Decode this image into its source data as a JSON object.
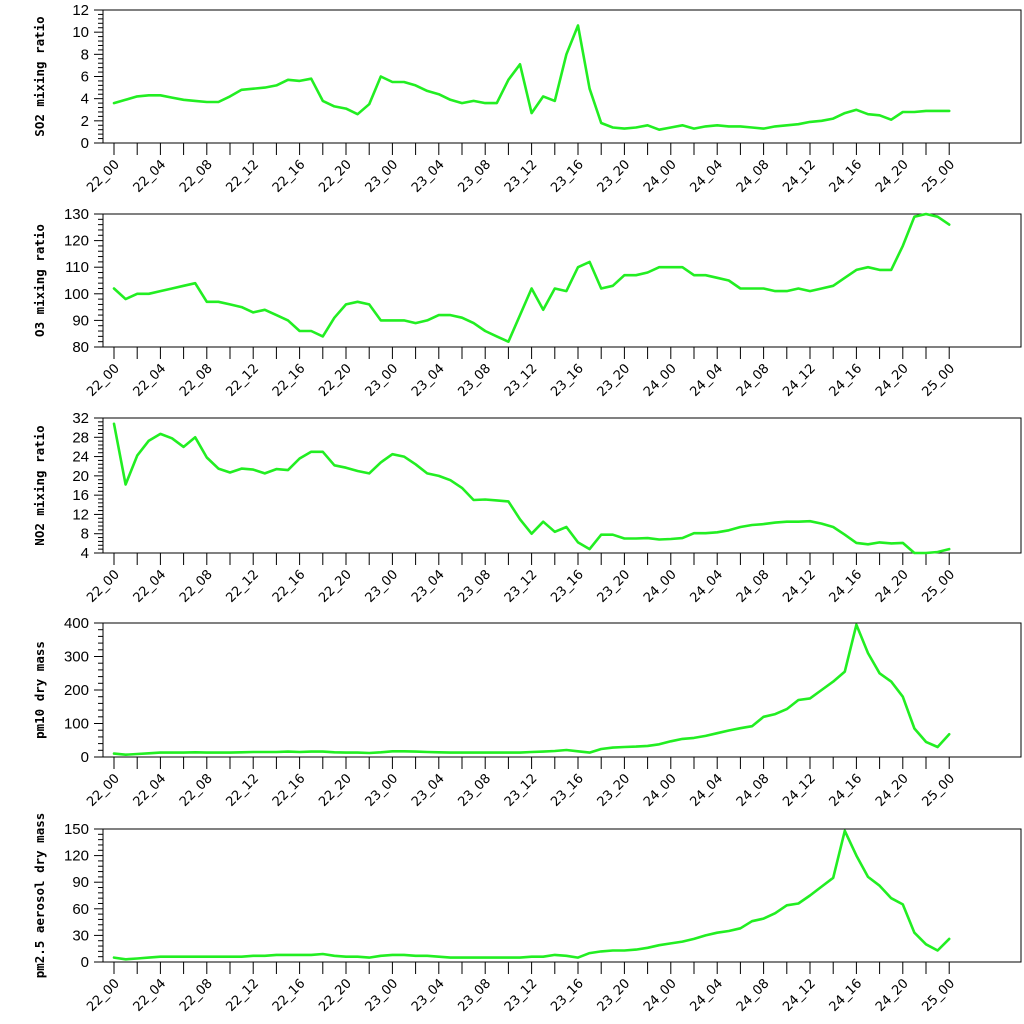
{
  "line_color": "#22ee22",
  "chart_data": [
    {
      "type": "line",
      "ylabel": "SO2 mixing ratio",
      "ylim": [
        0,
        12
      ],
      "yticks": [
        0,
        2,
        4,
        6,
        8,
        10,
        12
      ],
      "xtick_labels": [
        "22_00",
        "22_04",
        "22_08",
        "22_12",
        "22_16",
        "22_20",
        "23_00",
        "23_04",
        "23_08",
        "23_12",
        "23_16",
        "23_20",
        "24_00",
        "24_04",
        "24_08",
        "24_12",
        "24_16",
        "24_20",
        "25_00"
      ],
      "values": [
        3.6,
        3.9,
        4.2,
        4.3,
        4.3,
        4.1,
        3.9,
        3.8,
        3.7,
        3.7,
        4.2,
        4.8,
        4.9,
        5.0,
        5.2,
        5.7,
        5.6,
        5.8,
        3.8,
        3.3,
        3.1,
        2.6,
        3.5,
        6.0,
        5.5,
        5.5,
        5.2,
        4.7,
        4.4,
        3.9,
        3.6,
        3.8,
        3.6,
        3.6,
        5.7,
        7.1,
        2.7,
        4.2,
        3.8,
        8.0,
        10.6,
        4.9,
        1.8,
        1.4,
        1.3,
        1.4,
        1.6,
        1.2,
        1.4,
        1.6,
        1.3,
        1.5,
        1.6,
        1.5,
        1.5,
        1.4,
        1.3,
        1.5,
        1.6,
        1.7,
        1.9,
        2.0,
        2.2,
        2.7,
        3.0,
        2.6,
        2.5,
        2.1,
        2.8,
        2.8,
        2.9,
        2.9,
        2.9
      ]
    },
    {
      "type": "line",
      "ylabel": "O3 mixing ratio",
      "ylim": [
        80,
        130
      ],
      "yticks": [
        80,
        90,
        100,
        110,
        120,
        130
      ],
      "xtick_labels": [
        "22_00",
        "22_04",
        "22_08",
        "22_12",
        "22_16",
        "22_20",
        "23_00",
        "23_04",
        "23_08",
        "23_12",
        "23_16",
        "23_20",
        "24_00",
        "24_04",
        "24_08",
        "24_12",
        "24_16",
        "24_20",
        "25_00"
      ],
      "values": [
        102,
        98,
        100,
        100,
        101,
        102,
        103,
        104,
        97,
        97,
        96,
        95,
        93,
        94,
        92,
        90,
        86,
        86,
        84,
        91,
        96,
        97,
        96,
        90,
        90,
        90,
        89,
        90,
        92,
        92,
        91,
        89,
        86,
        84,
        82,
        92,
        102,
        94,
        102,
        101,
        110,
        112,
        102,
        103,
        107,
        107,
        108,
        110,
        110,
        110,
        107,
        107,
        106,
        105,
        102,
        102,
        102,
        101,
        101,
        102,
        101,
        102,
        103,
        106,
        109,
        110,
        109,
        109,
        118,
        129,
        130,
        129,
        126
      ]
    },
    {
      "type": "line",
      "ylabel": "NO2 mixing ratio",
      "ylim": [
        4,
        32
      ],
      "yticks": [
        4,
        8,
        12,
        16,
        20,
        24,
        28,
        32
      ],
      "xtick_labels": [
        "22_00",
        "22_04",
        "22_08",
        "22_12",
        "22_16",
        "22_20",
        "23_00",
        "23_04",
        "23_08",
        "23_12",
        "23_16",
        "23_20",
        "24_00",
        "24_04",
        "24_08",
        "24_12",
        "24_16",
        "24_20",
        "25_00"
      ],
      "values": [
        30.8,
        18.2,
        24.2,
        27.3,
        28.7,
        27.8,
        26.0,
        28.0,
        23.8,
        21.5,
        20.7,
        21.5,
        21.3,
        20.5,
        21.4,
        21.2,
        23.6,
        25.0,
        25.0,
        22.2,
        21.7,
        21.0,
        20.5,
        22.8,
        24.5,
        24.0,
        22.4,
        20.5,
        20.0,
        19.1,
        17.5,
        15.0,
        15.1,
        14.9,
        14.7,
        11.0,
        8.0,
        10.5,
        8.4,
        9.4,
        6.2,
        4.8,
        7.8,
        7.8,
        7.0,
        7.0,
        7.1,
        6.8,
        6.9,
        7.1,
        8.1,
        8.1,
        8.3,
        8.7,
        9.4,
        9.8,
        10.0,
        10.3,
        10.5,
        10.5,
        10.6,
        10.1,
        9.4,
        7.8,
        6.1,
        5.8,
        6.2,
        6.0,
        6.1,
        4.0,
        4.0,
        4.2,
        4.8
      ]
    },
    {
      "type": "line",
      "ylabel": "pm10 dry mass",
      "ylim": [
        0,
        400
      ],
      "yticks": [
        0,
        100,
        200,
        300,
        400
      ],
      "xtick_labels": [
        "22_00",
        "22_04",
        "22_08",
        "22_12",
        "22_16",
        "22_20",
        "23_00",
        "23_04",
        "23_08",
        "23_12",
        "23_16",
        "23_20",
        "24_00",
        "24_04",
        "24_08",
        "24_12",
        "24_16",
        "24_20",
        "25_00"
      ],
      "values": [
        10,
        7,
        9,
        11,
        13,
        13,
        13,
        14,
        13,
        13,
        13,
        14,
        15,
        15,
        15,
        16,
        15,
        16,
        16,
        14,
        13,
        13,
        12,
        14,
        17,
        17,
        16,
        15,
        14,
        13,
        13,
        13,
        13,
        13,
        13,
        13,
        15,
        16,
        18,
        21,
        17,
        13,
        24,
        28,
        30,
        31,
        33,
        38,
        47,
        54,
        57,
        63,
        71,
        79,
        86,
        92,
        120,
        128,
        143,
        170,
        175,
        200,
        225,
        255,
        395,
        310,
        250,
        225,
        180,
        85,
        45,
        30,
        68
      ]
    },
    {
      "type": "line",
      "ylabel": "pm2.5 aerosol dry mass",
      "ylim": [
        0,
        150
      ],
      "yticks": [
        0,
        30,
        60,
        90,
        120,
        150
      ],
      "xtick_labels": [
        "22_00",
        "22_04",
        "22_08",
        "22_12",
        "22_16",
        "22_20",
        "23_00",
        "23_04",
        "23_08",
        "23_12",
        "23_16",
        "23_20",
        "24_00",
        "24_04",
        "24_08",
        "24_12",
        "24_16",
        "24_20",
        "25_00"
      ],
      "values": [
        5,
        3,
        4,
        5,
        6,
        6,
        6,
        6,
        6,
        6,
        6,
        6,
        7,
        7,
        8,
        8,
        8,
        8,
        9,
        7,
        6,
        6,
        5,
        7,
        8,
        8,
        7,
        7,
        6,
        5,
        5,
        5,
        5,
        5,
        5,
        5,
        6,
        6,
        8,
        7,
        5,
        10,
        12,
        13,
        13,
        14,
        16,
        19,
        21,
        23,
        26,
        30,
        33,
        35,
        38,
        46,
        49,
        55,
        64,
        66,
        75,
        85,
        95,
        148,
        120,
        96,
        86,
        72,
        65,
        33,
        20,
        13,
        26
      ]
    }
  ]
}
